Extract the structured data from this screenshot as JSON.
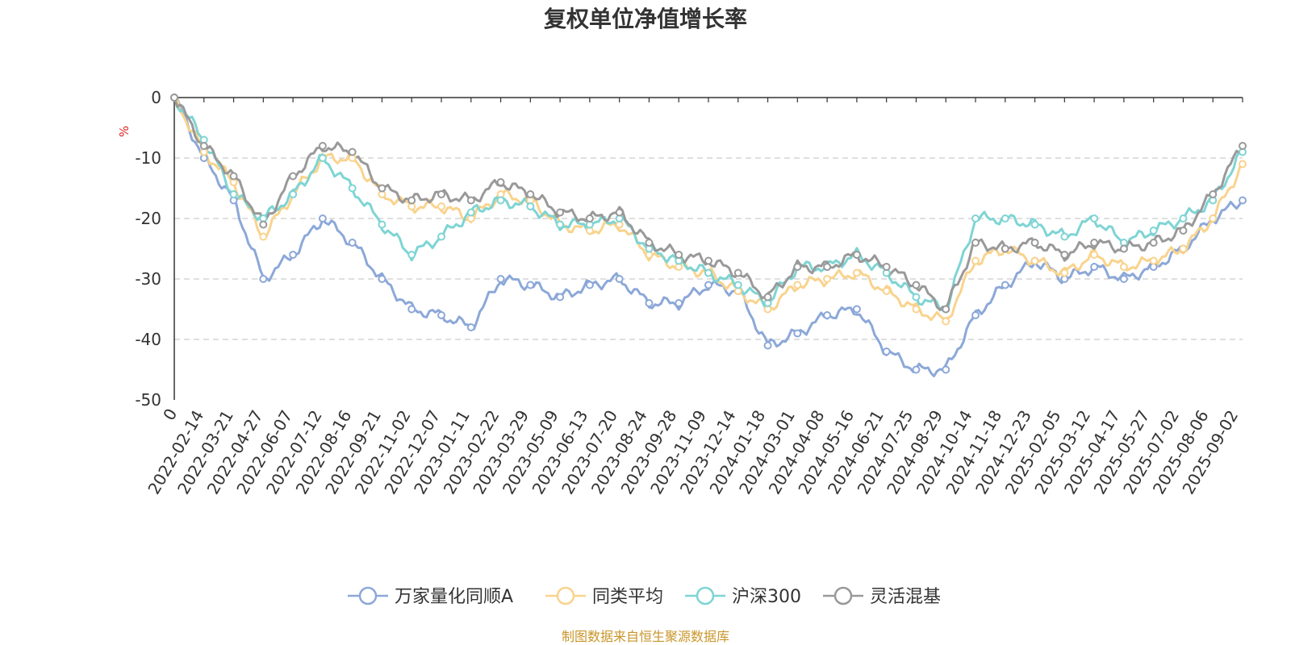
{
  "chart_data": {
    "type": "line",
    "title": "复权单位净值增长率",
    "ylabel": "%",
    "ylim": [
      -50,
      0
    ],
    "yticks": [
      0,
      -10,
      -20,
      -30,
      -40,
      -50
    ],
    "grid": true,
    "legend_position": "bottom",
    "source": "制图数据来自恒生聚源数据库",
    "x_start_label": "0",
    "x_labels": [
      "2022-02-14",
      "2022-03-21",
      "2022-04-27",
      "2022-06-07",
      "2022-07-12",
      "2022-08-16",
      "2022-09-21",
      "2022-11-02",
      "2022-12-07",
      "2023-01-11",
      "2023-02-22",
      "2023-03-29",
      "2023-05-09",
      "2023-06-13",
      "2023-07-20",
      "2023-08-24",
      "2023-09-28",
      "2023-11-09",
      "2023-12-14",
      "2024-01-18",
      "2024-03-01",
      "2024-04-08",
      "2024-05-16",
      "2024-06-21",
      "2024-07-25",
      "2024-08-29",
      "2024-10-14",
      "2024-11-18",
      "2024-12-23",
      "2025-02-05",
      "2025-03-12",
      "2025-04-17",
      "2025-05-27",
      "2025-07-02",
      "2025-08-06",
      "2025-09-02"
    ],
    "x_points": [
      "0",
      "2022-02-14",
      "2022-03-21",
      "2022-04-27",
      "2022-06-07",
      "2022-07-12",
      "2022-08-16",
      "2022-09-21",
      "2022-11-02",
      "2022-12-07",
      "2023-01-11",
      "2023-02-22",
      "2023-03-29",
      "2023-05-09",
      "2023-06-13",
      "2023-07-20",
      "2023-08-24",
      "2023-09-28",
      "2023-11-09",
      "2023-12-14",
      "2024-01-18",
      "2024-03-01",
      "2024-04-08",
      "2024-05-16",
      "2024-06-21",
      "2024-07-25",
      "2024-08-29",
      "2024-10-14",
      "2024-11-18",
      "2024-12-23",
      "2025-02-05",
      "2025-03-12",
      "2025-04-17",
      "2025-05-27",
      "2025-07-02",
      "2025-08-06",
      "2025-09-02"
    ],
    "series": [
      {
        "name": "万家量化同顺A",
        "color": "#8ca8d8",
        "values": [
          0,
          -10,
          -17,
          -30,
          -26,
          -20,
          -24,
          -30,
          -35,
          -36,
          -38,
          -30,
          -31,
          -33,
          -31,
          -30,
          -34,
          -34,
          -31,
          -32,
          -41,
          -39,
          -36,
          -35,
          -42,
          -45,
          -45,
          -36,
          -31,
          -27,
          -30,
          -28,
          -30,
          -28,
          -25,
          -20,
          -17
        ]
      },
      {
        "name": "同类平均",
        "color": "#f9d38d",
        "values": [
          0,
          -9,
          -14,
          -23,
          -16,
          -10,
          -10,
          -16,
          -18,
          -18,
          -20,
          -16,
          -17,
          -21,
          -22,
          -21,
          -26,
          -28,
          -29,
          -32,
          -35,
          -31,
          -30,
          -29,
          -32,
          -35,
          -37,
          -27,
          -25,
          -27,
          -29,
          -26,
          -28,
          -27,
          -25,
          -20,
          -11
        ]
      },
      {
        "name": "沪深300",
        "color": "#7fd4d4",
        "values": [
          0,
          -7,
          -16,
          -20,
          -16,
          -10,
          -15,
          -21,
          -26,
          -23,
          -19,
          -17,
          -18,
          -21,
          -21,
          -20,
          -25,
          -27,
          -29,
          -31,
          -34,
          -28,
          -28,
          -26,
          -29,
          -33,
          -35,
          -20,
          -20,
          -21,
          -23,
          -20,
          -24,
          -22,
          -20,
          -17,
          -9
        ]
      },
      {
        "name": "灵活混基",
        "color": "#999999",
        "values": [
          0,
          -8,
          -13,
          -21,
          -13,
          -8,
          -9,
          -15,
          -17,
          -16,
          -17,
          -14,
          -16,
          -19,
          -20,
          -19,
          -24,
          -26,
          -27,
          -29,
          -33,
          -28,
          -28,
          -26,
          -28,
          -31,
          -35,
          -24,
          -25,
          -24,
          -26,
          -24,
          -25,
          -24,
          -22,
          -16,
          -8
        ]
      }
    ]
  }
}
